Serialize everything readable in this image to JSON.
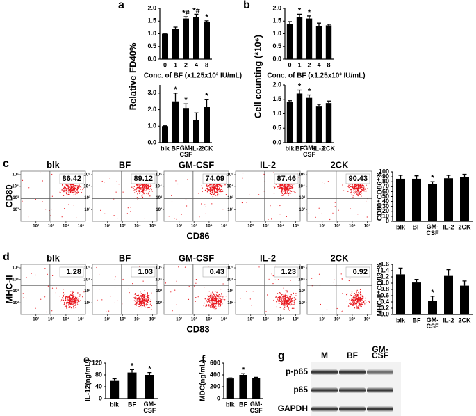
{
  "chart_data": [
    {
      "type": "bar",
      "panel": "a",
      "ylabel": "Relative FD40%",
      "xlabel": "Conc. of BF (x1.25x10³ IU/mL)",
      "categories": [
        "0",
        "1",
        "2",
        "4",
        "8"
      ],
      "values": [
        1.0,
        1.2,
        1.6,
        1.65,
        1.47
      ],
      "errors": [
        0.02,
        0.06,
        0.07,
        0.12,
        0.04
      ],
      "annotations": [
        null,
        null,
        "*#",
        "*#",
        "*"
      ],
      "color": "#000000",
      "ylim": [
        0,
        2
      ],
      "yticks": [
        {
          "value": 0,
          "label": "0.0"
        },
        0.5,
        {
          "value": 1,
          "label": "1.0"
        },
        1.5,
        {
          "value": 2,
          "label": "2.0"
        }
      ]
    },
    {
      "type": "bar",
      "categories": [
        "blk",
        "BF",
        "GM-CSF",
        "IL-2",
        "2CK"
      ],
      "values": [
        1.0,
        2.5,
        2.1,
        1.35,
        2.15
      ],
      "errors": [
        0.02,
        0.5,
        0.25,
        0.45,
        0.45
      ],
      "annotations": [
        null,
        "*",
        "*",
        null,
        "*"
      ],
      "color": "#000000",
      "ylim": [
        0,
        3.5
      ],
      "yticks": [
        {
          "value": 0,
          "label": "0.0"
        },
        {
          "value": 1,
          "label": "1.0"
        },
        {
          "value": 2,
          "label": "2.0"
        },
        {
          "value": 3,
          "label": "3.0"
        }
      ]
    },
    {
      "type": "bar",
      "panel": "b",
      "ylabel": "Cell counting (*10⁶)",
      "xlabel": "Conc. of BF (x1.25x10³ IU/mL)",
      "categories": [
        "0",
        "1",
        "2",
        "4",
        "8"
      ],
      "values": [
        1.38,
        1.65,
        1.6,
        1.3,
        1.33
      ],
      "errors": [
        0.1,
        0.12,
        0.1,
        0.12,
        0.04
      ],
      "annotations": [
        null,
        "*",
        "*",
        null,
        null
      ],
      "color": "#000000",
      "ylim": [
        0,
        2
      ],
      "yticks": [
        {
          "value": 0,
          "label": "0.0"
        },
        0.5,
        {
          "value": 1,
          "label": "1.0"
        },
        1.5,
        {
          "value": 2,
          "label": "2.0"
        }
      ]
    },
    {
      "type": "bar",
      "categories": [
        "blk",
        "BF",
        "GM-CSF",
        "IL-2",
        "2CK"
      ],
      "values": [
        1.4,
        1.7,
        1.55,
        1.25,
        1.37
      ],
      "errors": [
        0.05,
        0.12,
        0.1,
        0.08,
        0.07
      ],
      "annotations": [
        null,
        "*",
        "*",
        null,
        null
      ],
      "color": "#000000",
      "ylim": [
        0,
        2
      ],
      "yticks": [
        {
          "value": 0,
          "label": "0.0"
        },
        0.5,
        {
          "value": 1,
          "label": "1.0"
        },
        1.5,
        {
          "value": 2,
          "label": "2.0"
        }
      ]
    },
    {
      "type": "bar",
      "ylabel": "CD80⁺CD86⁺%",
      "categories": [
        "blk",
        "BF",
        "GM-CSF",
        "IL-2",
        "2CK"
      ],
      "values": [
        86,
        86,
        75,
        87,
        90
      ],
      "errors": [
        7,
        6,
        5,
        6,
        5
      ],
      "annotations": [
        null,
        null,
        "*",
        null,
        null
      ],
      "color": "#000000",
      "ylim": [
        0,
        100
      ],
      "yticks": [
        0,
        10,
        20,
        30,
        40,
        50,
        60,
        70,
        80,
        90,
        100
      ]
    },
    {
      "type": "bar",
      "ylabel": "MHC-II⁺CD83⁺%",
      "categories": [
        "blk",
        "BF",
        "GM-CSF",
        "IL-2",
        "2CK"
      ],
      "values": [
        1.28,
        1.02,
        0.43,
        1.23,
        0.92
      ],
      "errors": [
        0.2,
        0.1,
        0.15,
        0.2,
        0.15
      ],
      "annotations": [
        null,
        null,
        "*",
        null,
        null
      ],
      "color": "#000000",
      "ylim": [
        0,
        1.6
      ],
      "yticks": [
        {
          "value": 0,
          "label": "0.0"
        },
        0.2,
        0.4,
        0.6,
        0.8,
        {
          "value": 1,
          "label": "1.0"
        },
        1.2,
        1.4,
        1.6
      ]
    },
    {
      "type": "bar",
      "panel": "e",
      "ylabel": "IL-12(ng/mL)",
      "categories": [
        "blk",
        "BF",
        "GM-CSF"
      ],
      "values": [
        62,
        88,
        80
      ],
      "errors": [
        5,
        10,
        8
      ],
      "annotations": [
        null,
        "*",
        "*"
      ],
      "color": "#000000",
      "ylim": [
        0,
        120
      ],
      "yticks": [
        0,
        40,
        80,
        120
      ]
    },
    {
      "type": "bar",
      "panel": "f",
      "ylabel": "MDC(ng/mL)",
      "categories": [
        "blk",
        "BF",
        "GM-CSF"
      ],
      "values": [
        340,
        400,
        350
      ],
      "errors": [
        10,
        20,
        10
      ],
      "annotations": [
        null,
        "*",
        null
      ],
      "color": "#000000",
      "ylim": [
        0,
        600
      ],
      "yticks": [
        0,
        200,
        400,
        600
      ]
    }
  ],
  "flow_c": {
    "panel": "c",
    "xlabel": "CD86",
    "ylabel": "CD80",
    "samples": [
      "blk",
      "BF",
      "GM-CSF",
      "IL-2",
      "2CK"
    ],
    "percentages": [
      86.42,
      89.12,
      74.09,
      87.46,
      90.43
    ]
  },
  "flow_d": {
    "panel": "d",
    "xlabel": "CD83",
    "ylabel": "MHC-II",
    "samples": [
      "blk",
      "BF",
      "GM-CSF",
      "IL-2",
      "2CK"
    ],
    "percentages": [
      1.28,
      1.03,
      0.43,
      1.23,
      0.92
    ]
  },
  "flow_axis": {
    "lim": [
      1,
      5.3
    ],
    "ticks": [
      {
        "value": 2,
        "label": "10²"
      },
      {
        "value": 3,
        "label": "10³"
      },
      {
        "value": 4,
        "label": "10⁴"
      },
      {
        "value": 5,
        "label": "10⁵"
      }
    ]
  },
  "western": {
    "panel": "g",
    "lanes": [
      "M",
      "BF",
      "GM-CSF"
    ],
    "proteins": [
      "p-p65",
      "p65",
      "GAPDH"
    ]
  }
}
